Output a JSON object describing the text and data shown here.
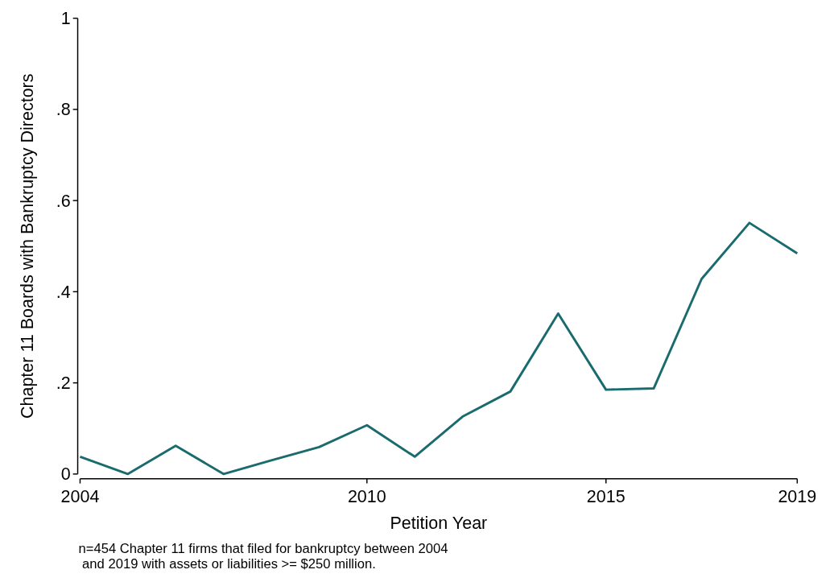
{
  "chart_data": {
    "type": "line",
    "xlabel": "Petition Year",
    "ylabel": "Chapter 11 Boards with Bankruptcy Directors",
    "x": [
      2004,
      2005,
      2006,
      2007,
      2008,
      2009,
      2010,
      2011,
      2012,
      2013,
      2014,
      2015,
      2016,
      2017,
      2018,
      2019
    ],
    "series": [
      {
        "color": "#1a6b6e",
        "values": [
          0.038,
          0,
          0.062,
          0,
          0.03,
          0.059,
          0.107,
          0.038,
          0.126,
          0.181,
          0.352,
          0.185,
          0.188,
          0.428,
          0.551,
          0.484
        ]
      }
    ],
    "xlim": [
      2004,
      2019
    ],
    "xticks": [
      2004,
      2010,
      2015,
      2019
    ],
    "ylim": [
      0,
      1
    ],
    "yticks": [
      0,
      {
        "value": 0.2,
        "label": ".2"
      },
      {
        "value": 0.4,
        "label": ".4"
      },
      {
        "value": 0.6,
        "label": ".6"
      },
      {
        "value": 0.8,
        "label": ".8"
      },
      1
    ],
    "grid": false,
    "marker": "none",
    "line_style": "solid",
    "annotations": [
      "n=454 Chapter 11 firms that filed for bankruptcy between 2004\n and 2019 with assets or liabilities >= $250 million."
    ]
  }
}
